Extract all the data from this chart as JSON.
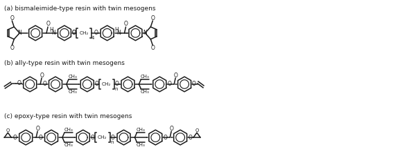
{
  "title_a": "(a) bismaleimide-type resin with twin mesogens",
  "title_b": "(b) ally-type resin with twin mesogens",
  "title_c": "(c) epoxy-type resin with twin mesogens",
  "bg_color": "#ffffff",
  "line_color": "#1a1a1a",
  "text_color": "#1a1a1a",
  "fig_width": 5.8,
  "fig_height": 2.39,
  "dpi": 100
}
